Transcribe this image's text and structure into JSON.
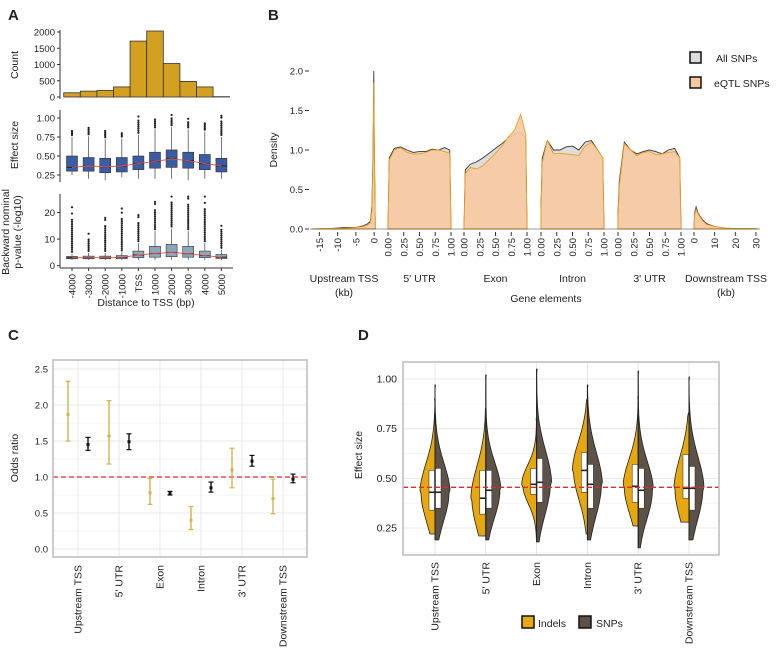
{
  "panel_labels": {
    "a": "A",
    "b": "B",
    "c": "C",
    "d": "D"
  },
  "colors": {
    "histogram": "#D4A021",
    "effect_box": "#3B5BA2",
    "pvalue_box": "#8FA6B9",
    "trend_line": "#D9534F",
    "reference_line": "#D32F2F",
    "all_snps_fill": "#DDDDDD",
    "eqtl_snps_fill": "#F6C9A3",
    "eqtl_snps_stroke": "#E8A020",
    "c_gold": "#D4B24C",
    "c_black": "#111111",
    "indels": "#E6A80E",
    "snps": "#5C5247"
  },
  "chart_data": [
    {
      "type": "bar",
      "panel": "A",
      "ylabel": "Count",
      "yticks": [
        "0",
        "500",
        "1000",
        "1500",
        "2000"
      ],
      "ytick_values": [
        0,
        500,
        1000,
        1500,
        2000
      ],
      "categories": [
        "-4000",
        "-3000",
        "-2000",
        "-1000",
        "TSS",
        "1000",
        "2000",
        "3000",
        "4000",
        "5000"
      ],
      "values": [
        130,
        180,
        200,
        310,
        1720,
        2030,
        1030,
        480,
        310,
        10
      ]
    },
    {
      "type": "box",
      "panel": "A",
      "ylabel": "Effect size",
      "yticks": [
        "0.25",
        "0.50",
        "0.75",
        "1.00"
      ],
      "ytick_values": [
        0.25,
        0.5,
        0.75,
        1.0
      ],
      "categories": [
        "-4000",
        "-3000",
        "-2000",
        "-1000",
        "TSS",
        "1000",
        "2000",
        "3000",
        "4000",
        "5000"
      ],
      "boxes": [
        {
          "lo": 0.25,
          "q1": 0.3,
          "median": 0.35,
          "q3": 0.5,
          "hi": 0.75,
          "outlier_max": 0.83
        },
        {
          "lo": 0.2,
          "q1": 0.3,
          "median": 0.37,
          "q3": 0.48,
          "hi": 0.76,
          "outlier_max": 0.87
        },
        {
          "lo": 0.18,
          "q1": 0.28,
          "median": 0.36,
          "q3": 0.47,
          "hi": 0.72,
          "outlier_max": 0.83
        },
        {
          "lo": 0.22,
          "q1": 0.29,
          "median": 0.37,
          "q3": 0.48,
          "hi": 0.73,
          "outlier_max": 0.8
        },
        {
          "lo": 0.2,
          "q1": 0.32,
          "median": 0.4,
          "q3": 0.5,
          "hi": 0.78,
          "outlier_max": 1.02
        },
        {
          "lo": 0.2,
          "q1": 0.34,
          "median": 0.43,
          "q3": 0.55,
          "hi": 0.85,
          "outlier_max": 0.98
        },
        {
          "lo": 0.2,
          "q1": 0.35,
          "median": 0.46,
          "q3": 0.58,
          "hi": 0.88,
          "outlier_max": 1.04
        },
        {
          "lo": 0.18,
          "q1": 0.34,
          "median": 0.44,
          "q3": 0.55,
          "hi": 0.85,
          "outlier_max": 0.99
        },
        {
          "lo": 0.2,
          "q1": 0.32,
          "median": 0.4,
          "q3": 0.52,
          "hi": 0.82,
          "outlier_max": 0.93
        },
        {
          "lo": 0.2,
          "q1": 0.29,
          "median": 0.37,
          "q3": 0.47,
          "hi": 0.75,
          "outlier_max": 1.03
        }
      ]
    },
    {
      "type": "box",
      "panel": "A",
      "ylabel_lines": [
        "Backward nominal",
        "p-value (-log10)"
      ],
      "xlabel": "Distance to TSS (bp)",
      "yticks": [
        "0",
        "10",
        "20"
      ],
      "ytick_values": [
        0,
        10,
        20
      ],
      "categories": [
        "-4000",
        "-3000",
        "-2000",
        "-1000",
        "TSS",
        "1000",
        "2000",
        "3000",
        "4000",
        "5000"
      ],
      "boxes": [
        {
          "lo": 2.2,
          "q1": 2.6,
          "median": 3.0,
          "q3": 3.5,
          "hi": 4.5,
          "outlier_max": 22
        },
        {
          "lo": 2.2,
          "q1": 2.6,
          "median": 3.0,
          "q3": 3.6,
          "hi": 4.8,
          "outlier_max": 12
        },
        {
          "lo": 2.2,
          "q1": 2.6,
          "median": 3.0,
          "q3": 3.6,
          "hi": 4.8,
          "outlier_max": 18
        },
        {
          "lo": 2.2,
          "q1": 2.6,
          "median": 3.1,
          "q3": 3.8,
          "hi": 5.0,
          "outlier_max": 21.5
        },
        {
          "lo": 2.2,
          "q1": 3.0,
          "median": 4.0,
          "q3": 5.5,
          "hi": 8.5,
          "outlier_max": 19
        },
        {
          "lo": 2.2,
          "q1": 3.2,
          "median": 4.6,
          "q3": 7.3,
          "hi": 13,
          "outlier_max": 24
        },
        {
          "lo": 2.2,
          "q1": 3.4,
          "median": 5.0,
          "q3": 8.0,
          "hi": 14,
          "outlier_max": 26
        },
        {
          "lo": 2.2,
          "q1": 3.2,
          "median": 4.5,
          "q3": 7.3,
          "hi": 13,
          "outlier_max": 26
        },
        {
          "lo": 2.2,
          "q1": 3.0,
          "median": 3.8,
          "q3": 5.5,
          "hi": 8.5,
          "outlier_max": 26
        },
        {
          "lo": 2.2,
          "q1": 2.7,
          "median": 3.2,
          "q3": 4.2,
          "hi": 6,
          "outlier_max": 15
        }
      ]
    },
    {
      "type": "area",
      "panel": "B",
      "ylabel": "Density",
      "xlabel": "Gene elements",
      "ylim": [
        0,
        2.1
      ],
      "yticks": [
        "0.0",
        "0.5",
        "1.0",
        "1.5",
        "2.0"
      ],
      "ytick_values": [
        0,
        0.5,
        1.0,
        1.5,
        2.0
      ],
      "legend": {
        "position": "top-right",
        "entries": [
          "All SNPs",
          "eQTL SNPs"
        ]
      },
      "segments": [
        {
          "name": "Upstream TSS",
          "unit": "(kb)",
          "xlim": [
            -17,
            0.5
          ],
          "ticks": [
            "-15",
            "-10",
            "-5",
            "0"
          ],
          "tick_values": [
            -15,
            -10,
            -5,
            0
          ],
          "x": [
            -17,
            -12,
            -8,
            -5,
            -3,
            -2,
            -1,
            -0.6,
            -0.3,
            -0.1,
            0,
            0.3
          ],
          "all": [
            0,
            0.005,
            0.02,
            0.02,
            0.04,
            0.06,
            0.1,
            0.3,
            1.0,
            2.0,
            1.2,
            0
          ],
          "eqtl": [
            0,
            0.005,
            0.01,
            0.02,
            0.03,
            0.05,
            0.08,
            0.25,
            0.9,
            1.85,
            1.1,
            0
          ]
        },
        {
          "name": "5' UTR",
          "xlim": [
            0,
            1
          ],
          "ticks": [
            "0.00",
            "0.25",
            "0.50",
            "0.75",
            "1.00"
          ],
          "tick_values": [
            0,
            0.25,
            0.5,
            0.75,
            1.0
          ],
          "x": [
            0,
            0.02,
            0.1,
            0.2,
            0.3,
            0.4,
            0.5,
            0.6,
            0.7,
            0.8,
            0.9,
            0.98,
            1.0
          ],
          "all": [
            0,
            0.9,
            1.02,
            1.04,
            1.0,
            0.97,
            0.98,
            0.98,
            1.01,
            1.0,
            1.03,
            1.0,
            0
          ],
          "eqtl": [
            0,
            0.88,
            1.0,
            1.03,
            0.97,
            0.95,
            0.95,
            0.97,
            1.0,
            1.0,
            0.98,
            0.96,
            0
          ]
        },
        {
          "name": "Exon",
          "xlim": [
            0,
            1
          ],
          "ticks": [
            "0.00",
            "0.25",
            "0.50",
            "0.75",
            "1.00"
          ],
          "tick_values": [
            0,
            0.25,
            0.5,
            0.75,
            1.0
          ],
          "x": [
            0,
            0.02,
            0.1,
            0.2,
            0.3,
            0.4,
            0.5,
            0.6,
            0.7,
            0.8,
            0.9,
            0.98,
            1.0
          ],
          "all": [
            0,
            0.75,
            0.82,
            0.85,
            0.9,
            0.96,
            1.02,
            1.08,
            1.15,
            1.2,
            1.22,
            1.15,
            0
          ],
          "eqtl": [
            0,
            0.7,
            0.78,
            0.76,
            0.8,
            0.88,
            0.96,
            1.05,
            1.16,
            1.25,
            1.45,
            1.2,
            0
          ]
        },
        {
          "name": "Intron",
          "xlim": [
            0,
            1
          ],
          "ticks": [
            "0.00",
            "0.25",
            "0.50",
            "0.75",
            "1.00"
          ],
          "tick_values": [
            0,
            0.25,
            0.5,
            0.75,
            1.0
          ],
          "x": [
            0,
            0.02,
            0.1,
            0.2,
            0.3,
            0.4,
            0.5,
            0.6,
            0.7,
            0.8,
            0.9,
            0.98,
            1.0
          ],
          "all": [
            0.3,
            0.9,
            1.12,
            1.0,
            1.0,
            1.04,
            1.05,
            1.0,
            1.1,
            1.12,
            1.0,
            0.9,
            0
          ],
          "eqtl": [
            0.25,
            0.85,
            1.12,
            0.95,
            0.96,
            0.95,
            0.94,
            0.93,
            1.05,
            1.1,
            1.0,
            0.9,
            0
          ]
        },
        {
          "name": "3' UTR",
          "xlim": [
            0,
            1
          ],
          "ticks": [
            "0.00",
            "0.25",
            "0.50",
            "0.75",
            "1.00"
          ],
          "tick_values": [
            0,
            0.25,
            0.5,
            0.75,
            1.0
          ],
          "x": [
            0,
            0.02,
            0.1,
            0.2,
            0.3,
            0.4,
            0.5,
            0.6,
            0.7,
            0.8,
            0.9,
            0.98,
            1.0
          ],
          "all": [
            0.2,
            0.6,
            1.1,
            1.0,
            0.95,
            0.98,
            1.0,
            0.98,
            0.95,
            1.0,
            1.02,
            0.9,
            0
          ],
          "eqtl": [
            0.15,
            0.55,
            1.08,
            1.0,
            0.93,
            0.97,
            0.98,
            0.94,
            0.95,
            0.97,
            0.98,
            0.9,
            0
          ]
        },
        {
          "name": "Downstream TSS",
          "unit": "(kb)",
          "xlim": [
            0,
            31
          ],
          "ticks": [
            "0",
            "10",
            "20",
            "30"
          ],
          "tick_values": [
            0,
            10,
            20,
            30
          ],
          "x": [
            0,
            0.3,
            1,
            2,
            4,
            6,
            10,
            15,
            20,
            30,
            31
          ],
          "all": [
            0,
            0.2,
            0.28,
            0.2,
            0.12,
            0.07,
            0.03,
            0.01,
            0.005,
            0.002,
            0
          ],
          "eqtl": [
            0,
            0.18,
            0.25,
            0.19,
            0.11,
            0.06,
            0.03,
            0.01,
            0.005,
            0.002,
            0
          ]
        }
      ]
    },
    {
      "type": "errorbar",
      "panel": "C",
      "ylabel": "Odds ratio",
      "ylim": [
        -0.1,
        2.6
      ],
      "yticks": [
        "0.0",
        "0.5",
        "1.0",
        "1.5",
        "2.0",
        "2.5"
      ],
      "ytick_values": [
        0,
        0.5,
        1.0,
        1.5,
        2.0,
        2.5
      ],
      "reference_line": 1.0,
      "grid": true,
      "categories": [
        "Upstream TSS",
        "5' UTR",
        "Exon",
        "Intron",
        "3' UTR",
        "Downstream TSS"
      ],
      "series": [
        {
          "color": "gold",
          "values": [
            1.87,
            1.57,
            0.78,
            0.4,
            1.1,
            0.7
          ],
          "lower": [
            1.5,
            1.18,
            0.62,
            0.27,
            0.85,
            0.49
          ],
          "upper": [
            2.33,
            2.06,
            0.98,
            0.59,
            1.4,
            0.97
          ]
        },
        {
          "color": "black",
          "values": [
            1.45,
            1.49,
            0.77,
            0.85,
            1.22,
            0.97
          ],
          "lower": [
            1.37,
            1.38,
            0.75,
            0.79,
            1.15,
            0.92
          ],
          "upper": [
            1.55,
            1.6,
            0.8,
            0.93,
            1.3,
            1.04
          ]
        }
      ]
    },
    {
      "type": "violin",
      "panel": "D",
      "ylabel": "Effect size",
      "ylim": [
        0.12,
        1.08
      ],
      "yticks": [
        "0.25",
        "0.50",
        "0.75",
        "1.00"
      ],
      "ytick_values": [
        0.25,
        0.5,
        0.75,
        1.0
      ],
      "reference_line": 0.455,
      "grid": true,
      "legend": {
        "position": "bottom",
        "entries": [
          "Indels",
          "SNPs"
        ]
      },
      "categories": [
        "Upstream TSS",
        "5' UTR",
        "Exon",
        "Intron",
        "3' UTR",
        "Downstream TSS"
      ],
      "indels": [
        {
          "min": 0.22,
          "q1": 0.34,
          "median": 0.43,
          "q3": 0.54,
          "max": 0.9
        },
        {
          "min": 0.21,
          "q1": 0.32,
          "median": 0.4,
          "q3": 0.54,
          "max": 0.85
        },
        {
          "min": 0.2,
          "q1": 0.42,
          "median": 0.47,
          "q3": 0.55,
          "max": 0.8
        },
        {
          "min": 0.22,
          "q1": 0.43,
          "median": 0.54,
          "q3": 0.63,
          "max": 0.9
        },
        {
          "min": 0.26,
          "q1": 0.38,
          "median": 0.46,
          "q3": 0.57,
          "max": 0.91
        },
        {
          "min": 0.28,
          "q1": 0.4,
          "median": 0.45,
          "q3": 0.62,
          "max": 0.83
        }
      ],
      "snps": [
        {
          "min": 0.19,
          "q1": 0.35,
          "median": 0.43,
          "q3": 0.55,
          "max": 0.97
        },
        {
          "min": 0.19,
          "q1": 0.35,
          "median": 0.44,
          "q3": 0.54,
          "max": 1.02
        },
        {
          "min": 0.18,
          "q1": 0.38,
          "median": 0.48,
          "q3": 0.6,
          "max": 1.05
        },
        {
          "min": 0.19,
          "q1": 0.35,
          "median": 0.47,
          "q3": 0.57,
          "max": 0.97
        },
        {
          "min": 0.15,
          "q1": 0.35,
          "median": 0.44,
          "q3": 0.55,
          "max": 1.04
        },
        {
          "min": 0.19,
          "q1": 0.34,
          "median": 0.45,
          "q3": 0.56,
          "max": 1.01
        }
      ]
    }
  ]
}
